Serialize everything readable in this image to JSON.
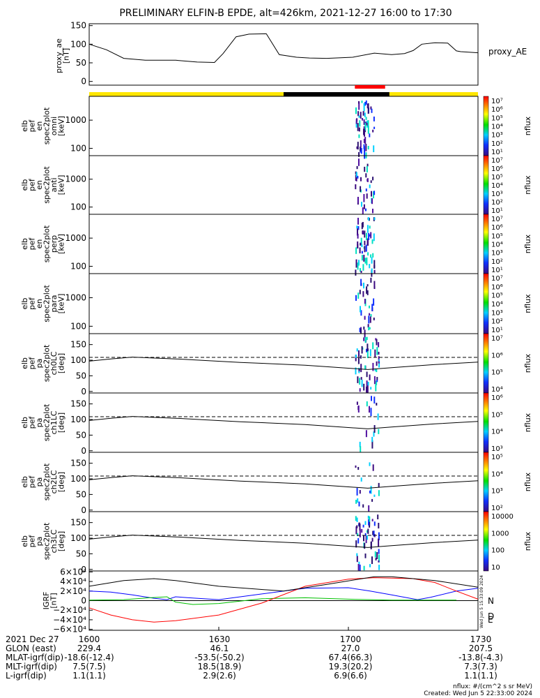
{
  "title": "PRELIMINARY ELFIN-B EPDE, alt=426km, 2021-12-27 16:00 to 17:30",
  "proxy_ae": {
    "ylabel": [
      "proxy_ae",
      "[nT]"
    ],
    "legend": "proxy_AE",
    "yticks": [
      "150",
      "100",
      "50",
      "0"
    ]
  },
  "spectrogram_panels": [
    {
      "label": [
        "elb",
        "pef",
        "en",
        "spec2plot",
        "omni",
        "[keV]"
      ],
      "yticks": [
        "1000",
        "100"
      ],
      "cbticks": [
        "10⁷",
        "10⁶",
        "10⁵",
        "10⁴",
        "10³",
        "10²",
        "10¹"
      ],
      "cbunit": "nflux"
    },
    {
      "label": [
        "elb",
        "pef",
        "en",
        "spec2plot",
        "anti",
        "[keV]"
      ],
      "yticks": [
        "1000",
        "100"
      ],
      "cbticks": [
        "10⁷",
        "10⁶",
        "10⁵",
        "10⁴",
        "10³",
        "10²",
        "10¹"
      ],
      "cbunit": "nflux"
    },
    {
      "label": [
        "elb",
        "pef",
        "en",
        "spec2plot",
        "perp",
        "[keV]"
      ],
      "yticks": [
        "1000",
        "100"
      ],
      "cbticks": [
        "10⁷",
        "10⁶",
        "10⁵",
        "10⁴",
        "10³",
        "10²",
        "10¹"
      ],
      "cbunit": "nflux"
    },
    {
      "label": [
        "elb",
        "pef",
        "en",
        "spec2plot",
        "para",
        "[keV]"
      ],
      "yticks": [
        "1000",
        "100"
      ],
      "cbticks": [
        "10⁷",
        "10⁶",
        "10⁵",
        "10⁴",
        "10³",
        "10²",
        "10¹"
      ],
      "cbunit": "nflux"
    }
  ],
  "pitch_panels": [
    {
      "label": [
        "elb",
        "pef",
        "pa",
        "spec2plot",
        "ch0LC",
        "[deg]"
      ],
      "yticks": [
        "150",
        "100",
        "50",
        "0"
      ],
      "cbticks": [
        "10⁷",
        "10⁶",
        "10⁵",
        "10⁴"
      ],
      "cbunit": "nflux"
    },
    {
      "label": [
        "elb",
        "pef",
        "pa",
        "spec2plot",
        "ch1LC",
        "[deg]"
      ],
      "yticks": [
        "150",
        "100",
        "50",
        "0"
      ],
      "cbticks": [
        "10⁶",
        "10⁵",
        "10⁴",
        "10³"
      ],
      "cbunit": "nflux"
    },
    {
      "label": [
        "elb",
        "pef",
        "pa",
        "spec2plot",
        "ch2LC",
        "[deg]"
      ],
      "yticks": [
        "150",
        "100",
        "50",
        "0"
      ],
      "cbticks": [
        "10⁵",
        "10⁴",
        "10³",
        "10²"
      ],
      "cbunit": "nflux"
    },
    {
      "label": [
        "elb",
        "pef",
        "pa",
        "spec2plot",
        "ch3LC",
        "[deg]"
      ],
      "yticks": [
        "150",
        "100",
        "50",
        "0"
      ],
      "cbticks": [
        "10000",
        "1000",
        "100",
        "10"
      ],
      "cbunit": "nflux"
    }
  ],
  "igrf": {
    "ylabel": [
      "IGRF",
      "[nT]"
    ],
    "yticks": [
      "6×10⁴",
      "4×10⁴",
      "2×10⁴",
      "0",
      "−2×10⁴",
      "−4×10⁴",
      "−6×10⁴"
    ],
    "legend": [
      "N",
      "E",
      "D"
    ],
    "side_stamp": "Wed Jun  5 15:33:09 2024"
  },
  "footer": {
    "rows": [
      {
        "label": "2021 Dec 27",
        "values": [
          "1600",
          "1630",
          "1700",
          "1730"
        ]
      },
      {
        "label": "GLON (east)",
        "values": [
          "229.4",
          "46.1",
          "27.0",
          "207.5"
        ]
      },
      {
        "label": "MLAT-igrf(dip)",
        "values": [
          "-18.6(-12.4)",
          "-53.5(-50.2)",
          "67.4(66.3)",
          "-13.8(-4.3)"
        ]
      },
      {
        "label": "MLT-igrf(dip)",
        "values": [
          "7.5(7.5)",
          "18.5(18.9)",
          "19.3(20.2)",
          "7.3(7.3)"
        ]
      },
      {
        "label": "L-igrf(dip)",
        "values": [
          "1.1(1.1)",
          "2.9(2.6)",
          "6.9(6.6)",
          "1.1(1.1)"
        ]
      }
    ],
    "units_note": "nflux: #/(cm^2 s sr MeV)",
    "created": "Created: Wed Jun  5 22:33:00 2024"
  },
  "chart_data": {
    "type": "line",
    "title": "PRELIMINARY ELFIN-B EPDE, alt=426km, 2021-12-27 16:00 to 17:30",
    "x_unit": "UT (HHMM)",
    "xlim": [
      "16:00",
      "17:30"
    ],
    "colors": {
      "status_bar_day": "#ffe600",
      "status_bar_night": "#000000",
      "science_zone": "#ff0000",
      "N": "#0000ff",
      "E": "#00c000",
      "D": "#ff0000",
      "total": "#000000"
    },
    "proxy_ae": {
      "ylim": [
        -10,
        155
      ],
      "minutes": [
        0,
        4,
        8,
        13,
        20,
        25,
        29,
        31,
        34,
        37,
        41,
        44,
        48,
        51,
        55,
        61,
        66,
        70,
        73,
        75,
        77,
        80,
        83,
        85,
        86,
        90
      ],
      "values": [
        100,
        85,
        62,
        57,
        57,
        52,
        51,
        75,
        120,
        127,
        128,
        72,
        65,
        63,
        62,
        65,
        76,
        72,
        75,
        83,
        100,
        104,
        103,
        82,
        80,
        77
      ]
    },
    "science_zone_minutes": [
      61.5,
      68.5
    ],
    "night_zone_minutes": [
      45,
      69.5
    ],
    "spectrogram_burst_minutes": [
      61.5,
      66
    ],
    "energy_ylim_keV": [
      55,
      7000
    ],
    "pitch_angle": {
      "ylim": [
        -5,
        185
      ],
      "dashed_level_deg": 109,
      "loss_cone_curve": {
        "minutes": [
          0,
          5,
          10,
          20,
          35,
          50,
          64.5,
          70,
          80,
          90
        ],
        "values": [
          97,
          104,
          110,
          104,
          93,
          84,
          70,
          76,
          86,
          94
        ]
      }
    },
    "igrf": {
      "ylim": [
        -62000,
        62000
      ],
      "series": [
        {
          "name": "N",
          "minutes": [
            0,
            5,
            10,
            15,
            18,
            20,
            23,
            30,
            40,
            50,
            60,
            65,
            70,
            76,
            79,
            85,
            90
          ],
          "values": [
            20000,
            18000,
            12000,
            5000,
            2000,
            8000,
            6000,
            2000,
            14000,
            26000,
            27000,
            20000,
            12000,
            2000,
            7000,
            20000,
            26000
          ]
        },
        {
          "name": "E",
          "minutes": [
            0,
            8,
            14,
            18,
            20,
            24,
            30,
            40,
            50,
            60,
            70,
            85
          ],
          "values": [
            1000,
            2000,
            6000,
            8000,
            -3000,
            -8000,
            -6000,
            4000,
            6000,
            3000,
            1000,
            1000
          ]
        },
        {
          "name": "D",
          "minutes": [
            0,
            5,
            10,
            15,
            20,
            30,
            40,
            50,
            60,
            66,
            75,
            80,
            85,
            90
          ],
          "values": [
            -15000,
            -30000,
            -40000,
            -45000,
            -42000,
            -30000,
            -5000,
            30000,
            45000,
            48000,
            46000,
            38000,
            20000,
            3000
          ]
        },
        {
          "name": "total",
          "minutes": [
            0,
            8,
            15,
            20,
            30,
            45,
            55,
            66,
            70,
            80,
            90
          ],
          "values": [
            30000,
            42000,
            46000,
            42000,
            30000,
            20000,
            34000,
            50000,
            50000,
            42000,
            28000
          ]
        }
      ]
    }
  }
}
